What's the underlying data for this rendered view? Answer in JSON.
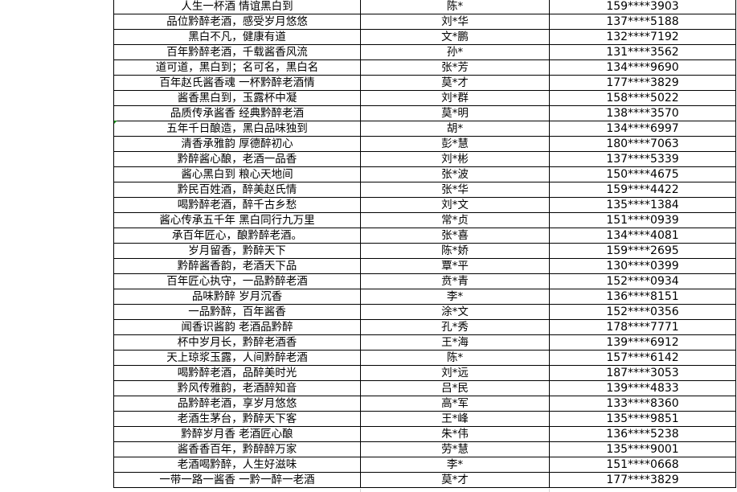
{
  "rows": [
    {
      "slogan": "人生一杯酒 情谊黑白到",
      "name": "陈*",
      "phone": "159****3903"
    },
    {
      "slogan": "品位黔醉老酒，感受岁月悠悠",
      "name": "刘*华",
      "phone": "137****5188"
    },
    {
      "slogan": "黑白不凡，健康有道",
      "name": "文*鹏",
      "phone": "132****7192"
    },
    {
      "slogan": "百年黔醉老酒，千载酱香风流",
      "name": "孙*",
      "phone": "131****3562"
    },
    {
      "slogan": "道可道，黑白到；名可名，黑白名",
      "name": "张*芳",
      "phone": "134****9690"
    },
    {
      "slogan": "百年赵氏酱香魂  一杯黔醉老酒情",
      "name": "莫*才",
      "phone": "177****3829"
    },
    {
      "slogan": "酱香黑白到，玉露杯中凝",
      "name": "刘*群",
      "phone": "158****5022"
    },
    {
      "slogan": "品质传承酱香  经典黔醉老酒",
      "name": "莫*明",
      "phone": "138****3570"
    },
    {
      "slogan": "五年千日酿造，黑白品味独到",
      "name": "胡*",
      "phone": "134****6997"
    },
    {
      "slogan": "清香承雅韵  厚德醉初心",
      "name": "彭*慧",
      "phone": "180****7063"
    },
    {
      "slogan": "黔醉酱心酿，老酒一品香",
      "name": "刘*彬",
      "phone": "137****5339"
    },
    {
      "slogan": "酱心黑白到 粮心天地间",
      "name": "张*波",
      "phone": "150****4675"
    },
    {
      "slogan": "黔民百姓酒，醉美赵氏情",
      "name": "张*华",
      "phone": "159****4422"
    },
    {
      "slogan": "喝黔醉老酒，醉千古乡愁",
      "name": "刘*文",
      "phone": "135****1384"
    },
    {
      "slogan": "酱心传承五千年 黑白同行九万里",
      "name": "常*贞",
      "phone": "151****0939"
    },
    {
      "slogan": "承百年匠心，酿黔醉老酒。",
      "name": "张*喜",
      "phone": "134****4081"
    },
    {
      "slogan": "岁月留香，黔醉天下",
      "name": "陈*娇",
      "phone": "159****2695"
    },
    {
      "slogan": "黔醉酱香韵，老酒天下品",
      "name": "覃*平",
      "phone": "130****0399"
    },
    {
      "slogan": "百年匠心执守，一品黔醉老酒",
      "name": "贲*青",
      "phone": "152****0934"
    },
    {
      "slogan": "品味黔醉 岁月沉香",
      "name": "李*",
      "phone": "136****8151"
    },
    {
      "slogan": "一品黔醉，百年酱香",
      "name": "涂*文",
      "phone": "152****0356"
    },
    {
      "slogan": "闻香识酱韵  老酒品黔醉",
      "name": "孔*秀",
      "phone": "178****7771"
    },
    {
      "slogan": "杯中岁月长，黔醉老酒香",
      "name": "王*海",
      "phone": "139****6912"
    },
    {
      "slogan": "天上琼浆玉露，人间黔醉老酒",
      "name": "陈*",
      "phone": "157****6142"
    },
    {
      "slogan": "喝黔醉老酒，品醉美时光",
      "name": "刘*远",
      "phone": "187****3053"
    },
    {
      "slogan": "黔风传雅韵，老酒醉知音",
      "name": "吕*民",
      "phone": "139****4833"
    },
    {
      "slogan": "品黔醉老酒，享岁月悠悠",
      "name": "高*军",
      "phone": "133****8360"
    },
    {
      "slogan": "老酒生茅台，黔醉天下客",
      "name": "王*峰",
      "phone": "135****9851"
    },
    {
      "slogan": "黔醉岁月香 老酒匠心酿",
      "name": "朱*伟",
      "phone": "136****5238"
    },
    {
      "slogan": "酱香香百年，黔醉醉万家",
      "name": "劳*慧",
      "phone": "135****9001"
    },
    {
      "slogan": "老酒喝黔醉，人生好滋味",
      "name": "李*",
      "phone": "151****0668"
    },
    {
      "slogan": "一带一路一酱香  一黔一醉一老酒",
      "name": "莫*才",
      "phone": "177****3829"
    }
  ]
}
